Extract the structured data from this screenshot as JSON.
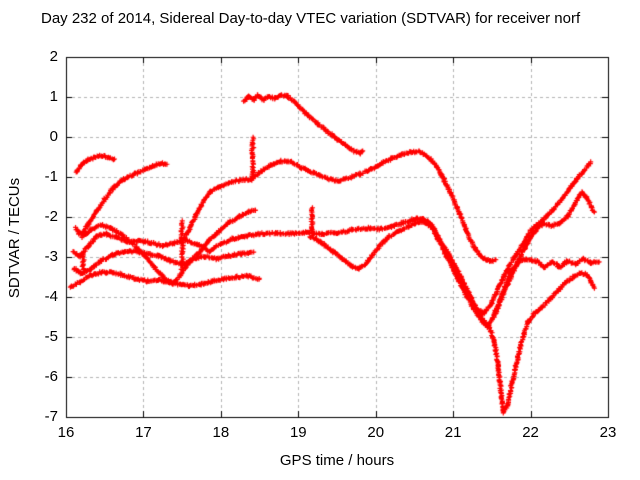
{
  "title": "Day 232 of 2014, Sidereal Day-to-day VTEC variation (SDTVAR) for receiver norf",
  "axes": {
    "xlabel": "GPS time / hours",
    "ylabel": "SDTVAR / TECUs"
  },
  "colors": {
    "trace": "#ff0000",
    "grid": "#b4b4b4",
    "border": "#000000",
    "text": "#000000",
    "background": "#ffffff"
  },
  "chart_data": {
    "type": "scatter",
    "title": "Day 232 of 2014, Sidereal Day-to-day VTEC variation (SDTVAR) for receiver norf",
    "xlabel": "GPS time / hours",
    "ylabel": "SDTVAR / TECUs",
    "xlim": [
      16,
      23
    ],
    "ylim": [
      -7,
      2
    ],
    "x_ticks": [
      16,
      17,
      18,
      19,
      20,
      21,
      22,
      23
    ],
    "y_ticks": [
      2,
      1,
      0,
      -1,
      -2,
      -3,
      -4,
      -5,
      -6,
      -7
    ],
    "grid": true,
    "legend": "none",
    "marker": "plus",
    "marker_color": "#ff0000",
    "series": [
      {
        "name": "trace-1-short-arc",
        "points": [
          [
            16.13,
            -0.88
          ],
          [
            16.2,
            -0.7
          ],
          [
            16.28,
            -0.58
          ],
          [
            16.38,
            -0.5
          ],
          [
            16.47,
            -0.47
          ],
          [
            16.55,
            -0.5
          ],
          [
            16.63,
            -0.57
          ]
        ]
      },
      {
        "name": "trace-2-rise-to-0.7",
        "points": [
          [
            16.12,
            -2.27
          ],
          [
            16.17,
            -2.42
          ],
          [
            16.22,
            -2.38
          ],
          [
            16.3,
            -2.15
          ],
          [
            16.4,
            -1.85
          ],
          [
            16.5,
            -1.55
          ],
          [
            16.6,
            -1.3
          ],
          [
            16.7,
            -1.12
          ],
          [
            16.8,
            -1.0
          ],
          [
            16.92,
            -0.9
          ],
          [
            17.02,
            -0.8
          ],
          [
            17.12,
            -0.72
          ],
          [
            17.22,
            -0.66
          ],
          [
            17.3,
            -0.68
          ]
        ]
      },
      {
        "name": "trace-3-long-band",
        "points": [
          [
            16.1,
            -2.88
          ],
          [
            16.18,
            -2.98
          ],
          [
            16.28,
            -2.75
          ],
          [
            16.4,
            -2.48
          ],
          [
            16.52,
            -2.42
          ],
          [
            16.65,
            -2.52
          ],
          [
            16.8,
            -2.62
          ],
          [
            16.95,
            -2.58
          ],
          [
            17.1,
            -2.65
          ],
          [
            17.25,
            -2.72
          ],
          [
            17.4,
            -2.65
          ],
          [
            17.55,
            -2.58
          ],
          [
            17.7,
            -2.7
          ],
          [
            17.85,
            -2.85
          ],
          [
            18.0,
            -2.68
          ],
          [
            18.15,
            -2.55
          ],
          [
            18.3,
            -2.48
          ],
          [
            18.5,
            -2.42
          ],
          [
            18.7,
            -2.4
          ],
          [
            18.9,
            -2.42
          ],
          [
            19.1,
            -2.38
          ],
          [
            19.3,
            -2.42
          ],
          [
            19.5,
            -2.4
          ],
          [
            19.7,
            -2.32
          ],
          [
            19.9,
            -2.28
          ],
          [
            20.05,
            -2.3
          ],
          [
            20.2,
            -2.25
          ],
          [
            20.35,
            -2.15
          ],
          [
            20.5,
            -2.05
          ],
          [
            20.6,
            -2.02
          ],
          [
            20.7,
            -2.15
          ],
          [
            20.8,
            -2.5
          ],
          [
            20.95,
            -2.95
          ],
          [
            21.1,
            -3.5
          ],
          [
            21.25,
            -4.1
          ],
          [
            21.38,
            -4.55
          ],
          [
            21.45,
            -4.72
          ],
          [
            21.55,
            -4.4
          ],
          [
            21.65,
            -3.85
          ],
          [
            21.75,
            -3.35
          ],
          [
            21.85,
            -3.12
          ],
          [
            21.95,
            -3.05
          ],
          [
            22.08,
            -3.1
          ],
          [
            22.18,
            -3.25
          ],
          [
            22.28,
            -3.12
          ],
          [
            22.38,
            -3.25
          ],
          [
            22.48,
            -3.1
          ],
          [
            22.58,
            -3.18
          ],
          [
            22.68,
            -3.05
          ],
          [
            22.78,
            -3.15
          ],
          [
            22.88,
            -3.12
          ]
        ]
      },
      {
        "name": "trace-4-braid",
        "points": [
          [
            16.1,
            -3.28
          ],
          [
            16.2,
            -3.42
          ],
          [
            16.32,
            -3.3
          ],
          [
            16.45,
            -3.1
          ],
          [
            16.6,
            -2.95
          ],
          [
            16.75,
            -2.86
          ],
          [
            16.9,
            -2.86
          ],
          [
            17.05,
            -2.92
          ],
          [
            17.2,
            -2.97
          ],
          [
            17.35,
            -3.1
          ],
          [
            17.5,
            -3.18
          ],
          [
            17.65,
            -3.05
          ],
          [
            17.8,
            -2.98
          ],
          [
            17.95,
            -3.05
          ],
          [
            18.1,
            -2.97
          ],
          [
            18.25,
            -2.92
          ],
          [
            18.42,
            -2.9
          ]
        ]
      },
      {
        "name": "trace-5-bottom-flat",
        "points": [
          [
            16.05,
            -3.76
          ],
          [
            16.18,
            -3.62
          ],
          [
            16.32,
            -3.46
          ],
          [
            16.46,
            -3.38
          ],
          [
            16.6,
            -3.38
          ],
          [
            16.75,
            -3.46
          ],
          [
            16.9,
            -3.55
          ],
          [
            17.05,
            -3.6
          ],
          [
            17.2,
            -3.58
          ],
          [
            17.32,
            -3.62
          ],
          [
            17.45,
            -3.68
          ],
          [
            17.6,
            -3.72
          ],
          [
            17.75,
            -3.68
          ],
          [
            17.9,
            -3.6
          ],
          [
            18.05,
            -3.55
          ],
          [
            18.2,
            -3.5
          ],
          [
            18.35,
            -3.48
          ],
          [
            18.5,
            -3.55
          ]
        ]
      },
      {
        "name": "trace-6-v-then-rise",
        "points": [
          [
            16.2,
            -2.52
          ],
          [
            16.32,
            -2.32
          ],
          [
            16.45,
            -2.2
          ],
          [
            16.58,
            -2.28
          ],
          [
            16.72,
            -2.45
          ],
          [
            16.85,
            -2.65
          ],
          [
            17.0,
            -2.92
          ],
          [
            17.15,
            -3.28
          ],
          [
            17.28,
            -3.55
          ],
          [
            17.38,
            -3.66
          ],
          [
            17.48,
            -3.45
          ],
          [
            17.6,
            -3.12
          ],
          [
            17.72,
            -2.88
          ],
          [
            17.85,
            -2.58
          ],
          [
            17.98,
            -2.35
          ],
          [
            18.1,
            -2.15
          ],
          [
            18.22,
            -2.0
          ],
          [
            18.35,
            -1.88
          ],
          [
            18.45,
            -1.82
          ]
        ]
      },
      {
        "name": "trace-7-midlevel",
        "points": [
          [
            17.5,
            -2.6
          ],
          [
            17.58,
            -2.35
          ],
          [
            17.68,
            -1.95
          ],
          [
            17.78,
            -1.58
          ],
          [
            17.88,
            -1.35
          ],
          [
            17.98,
            -1.25
          ],
          [
            18.1,
            -1.15
          ],
          [
            18.25,
            -1.08
          ],
          [
            18.4,
            -1.05
          ],
          [
            18.52,
            -0.85
          ],
          [
            18.65,
            -0.7
          ],
          [
            18.78,
            -0.6
          ],
          [
            18.9,
            -0.62
          ],
          [
            19.02,
            -0.75
          ],
          [
            19.15,
            -0.85
          ],
          [
            19.28,
            -0.97
          ],
          [
            19.4,
            -1.05
          ],
          [
            19.52,
            -1.1
          ],
          [
            19.65,
            -1.02
          ],
          [
            19.8,
            -0.92
          ],
          [
            19.95,
            -0.8
          ],
          [
            20.08,
            -0.65
          ],
          [
            20.2,
            -0.55
          ],
          [
            20.32,
            -0.45
          ],
          [
            20.45,
            -0.37
          ],
          [
            20.58,
            -0.37
          ],
          [
            20.68,
            -0.5
          ],
          [
            20.78,
            -0.72
          ],
          [
            20.88,
            -1.05
          ],
          [
            20.98,
            -1.45
          ],
          [
            21.08,
            -1.9
          ],
          [
            21.18,
            -2.38
          ],
          [
            21.28,
            -2.78
          ],
          [
            21.38,
            -3.02
          ],
          [
            21.48,
            -3.1
          ],
          [
            21.55,
            -3.08
          ]
        ]
      },
      {
        "name": "trace-8-top",
        "points": [
          [
            18.3,
            0.88
          ],
          [
            18.36,
            1.02
          ],
          [
            18.42,
            0.92
          ],
          [
            18.48,
            1.05
          ],
          [
            18.55,
            0.92
          ],
          [
            18.62,
            1.0
          ],
          [
            18.7,
            0.96
          ],
          [
            18.78,
            1.05
          ],
          [
            18.86,
            1.02
          ],
          [
            18.95,
            0.88
          ],
          [
            19.05,
            0.68
          ],
          [
            19.15,
            0.5
          ],
          [
            19.25,
            0.33
          ],
          [
            19.35,
            0.18
          ],
          [
            19.45,
            0.03
          ],
          [
            19.55,
            -0.12
          ],
          [
            19.65,
            -0.27
          ],
          [
            19.75,
            -0.38
          ],
          [
            19.8,
            -0.4
          ],
          [
            19.84,
            -0.33
          ]
        ]
      },
      {
        "name": "trace-9-deep-v",
        "points": [
          [
            19.15,
            -2.5
          ],
          [
            19.28,
            -2.62
          ],
          [
            19.42,
            -2.82
          ],
          [
            19.55,
            -3.02
          ],
          [
            19.68,
            -3.22
          ],
          [
            19.78,
            -3.3
          ],
          [
            19.88,
            -3.15
          ],
          [
            19.98,
            -2.9
          ],
          [
            20.08,
            -2.65
          ],
          [
            20.18,
            -2.48
          ],
          [
            20.3,
            -2.35
          ],
          [
            20.42,
            -2.25
          ],
          [
            20.52,
            -2.15
          ],
          [
            20.62,
            -2.12
          ],
          [
            20.72,
            -2.25
          ],
          [
            20.82,
            -2.6
          ],
          [
            20.92,
            -3.0
          ],
          [
            21.05,
            -3.5
          ],
          [
            21.18,
            -4.0
          ],
          [
            21.3,
            -4.4
          ],
          [
            21.4,
            -4.65
          ],
          [
            21.47,
            -4.78
          ],
          [
            21.53,
            -5.1
          ],
          [
            21.58,
            -5.7
          ],
          [
            21.62,
            -6.4
          ],
          [
            21.65,
            -6.88
          ],
          [
            21.7,
            -6.7
          ],
          [
            21.76,
            -6.15
          ],
          [
            21.83,
            -5.55
          ],
          [
            21.9,
            -5.0
          ],
          [
            21.97,
            -4.62
          ],
          [
            22.05,
            -4.42
          ],
          [
            22.15,
            -4.25
          ],
          [
            22.25,
            -4.05
          ],
          [
            22.35,
            -3.85
          ],
          [
            22.45,
            -3.65
          ],
          [
            22.55,
            -3.5
          ],
          [
            22.65,
            -3.4
          ],
          [
            22.72,
            -3.44
          ],
          [
            22.78,
            -3.62
          ],
          [
            22.82,
            -3.76
          ]
        ]
      },
      {
        "name": "trace-10-rise-right",
        "points": [
          [
            20.62,
            -2.08
          ],
          [
            20.72,
            -2.2
          ],
          [
            20.82,
            -2.55
          ],
          [
            20.92,
            -2.95
          ],
          [
            21.05,
            -3.45
          ],
          [
            21.18,
            -3.95
          ],
          [
            21.3,
            -4.3
          ],
          [
            21.4,
            -4.42
          ],
          [
            21.5,
            -4.15
          ],
          [
            21.6,
            -3.7
          ],
          [
            21.7,
            -3.3
          ],
          [
            21.8,
            -2.98
          ],
          [
            21.9,
            -2.68
          ],
          [
            22.0,
            -2.35
          ],
          [
            22.08,
            -2.2
          ],
          [
            22.2,
            -2.0
          ],
          [
            22.3,
            -1.8
          ],
          [
            22.4,
            -1.58
          ],
          [
            22.5,
            -1.3
          ],
          [
            22.6,
            -1.05
          ],
          [
            22.7,
            -0.82
          ],
          [
            22.78,
            -0.62
          ]
        ]
      },
      {
        "name": "trace-11-lens",
        "points": [
          [
            21.52,
            -4.45
          ],
          [
            21.62,
            -4.05
          ],
          [
            21.72,
            -3.6
          ],
          [
            21.82,
            -3.2
          ],
          [
            21.92,
            -2.8
          ],
          [
            22.02,
            -2.45
          ],
          [
            22.1,
            -2.25
          ],
          [
            22.18,
            -2.18
          ],
          [
            22.28,
            -2.22
          ],
          [
            22.38,
            -2.15
          ],
          [
            22.48,
            -1.98
          ],
          [
            22.58,
            -1.65
          ],
          [
            22.66,
            -1.38
          ],
          [
            22.72,
            -1.52
          ],
          [
            22.78,
            -1.72
          ],
          [
            22.82,
            -1.86
          ]
        ]
      }
    ],
    "vertical_clusters": [
      {
        "name": "spur-16.2",
        "x": 16.22,
        "v_from": -3.35,
        "v_to": -2.92
      },
      {
        "name": "spur-17.5",
        "x": 17.5,
        "v_from": -3.3,
        "v_to": -2.1
      },
      {
        "name": "spur-18.4",
        "x": 18.41,
        "v_from": -1.08,
        "v_to": -0.02
      },
      {
        "name": "spur-19.2",
        "x": 19.18,
        "v_from": -2.45,
        "v_to": -1.78
      }
    ]
  }
}
